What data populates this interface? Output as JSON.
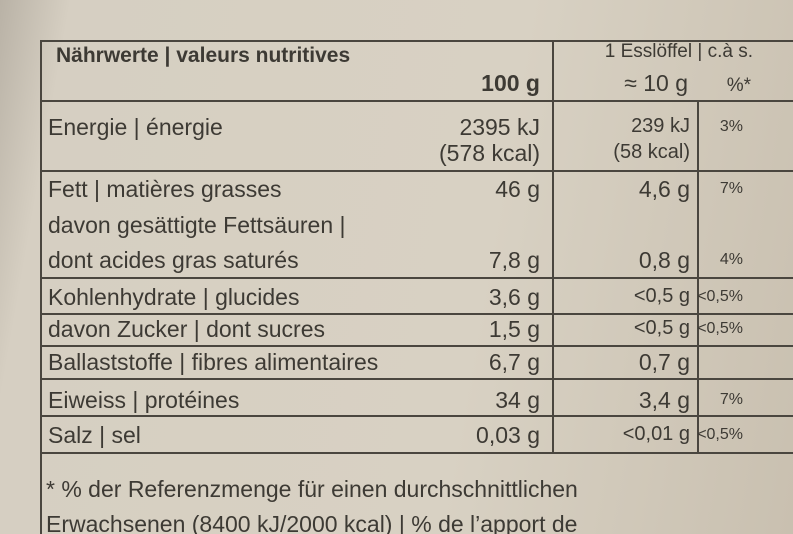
{
  "header": {
    "label": "Nährwerte | valeurs nutritives",
    "per100": "100 g",
    "perSpoon": [
      "1 Esslöffel | c.à s.",
      "≈ 10 g"
    ],
    "percent": "%*"
  },
  "rows": [
    {
      "label": [
        "Energie | énergie"
      ],
      "per100": [
        "2395 kJ",
        "(578 kcal)"
      ],
      "perSpoon": [
        "239 kJ",
        "(58 kcal)"
      ],
      "percent": "3%"
    },
    {
      "label": [
        "Fett | matières grasses"
      ],
      "per100": [
        "46 g"
      ],
      "perSpoon": [
        "4,6 g"
      ],
      "percent": "7%"
    },
    {
      "label": [
        "davon gesättigte Fettsäuren |",
        "dont acides gras saturés"
      ],
      "per100": [
        "7,8 g"
      ],
      "perSpoon": [
        "0,8 g"
      ],
      "percent": "4%"
    },
    {
      "label": [
        "Kohlenhydrate | glucides"
      ],
      "per100": [
        "3,6 g"
      ],
      "perSpoon": [
        "<0,5 g"
      ],
      "percent": "<0,5%"
    },
    {
      "label": [
        "davon Zucker | dont sucres"
      ],
      "per100": [
        "1,5 g"
      ],
      "perSpoon": [
        "<0,5 g"
      ],
      "percent": "<0,5%"
    },
    {
      "label": [
        "Ballaststoffe | fibres alimentaires"
      ],
      "per100": [
        "6,7 g"
      ],
      "perSpoon": [
        "0,7 g"
      ]
    },
    {
      "label": [
        "Eiweiss | protéines"
      ],
      "per100": [
        "34 g"
      ],
      "perSpoon": [
        "3,4 g"
      ],
      "percent": "7%"
    },
    {
      "label": [
        "Salz | sel"
      ],
      "per100": [
        "0,03 g"
      ],
      "perSpoon": [
        "<0,01 g"
      ],
      "percent": "<0,5%"
    }
  ],
  "footnote": [
    "* % der Referenzmenge für einen durchschnittlichen",
    "Erwachsenen (8400 kJ/2000 kcal) | % de l’apport de"
  ]
}
